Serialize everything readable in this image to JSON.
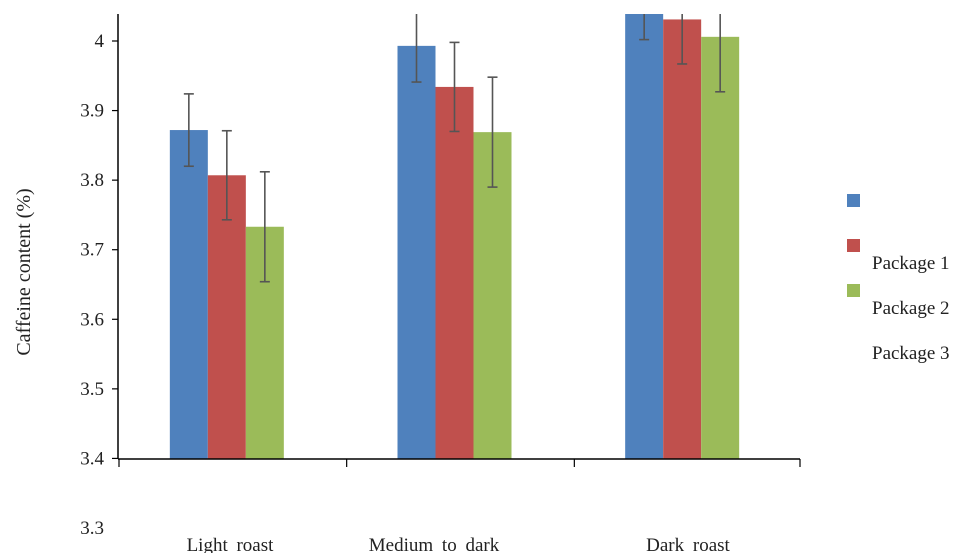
{
  "chart_data": {
    "type": "bar",
    "ylabel": "Caffeine content (%)",
    "xlabel": "",
    "ylim": [
      3.3,
      4.05
    ],
    "y_ticks": [
      "3.3",
      "3.4",
      "3.5",
      "3.6",
      "3.7",
      "3.8",
      "3.9",
      "4"
    ],
    "categories": [
      "Light roast",
      "Medium to dark",
      "Dark roast"
    ],
    "series": [
      {
        "name": "Package 1",
        "color": "#4f81bd",
        "values": [
          3.872,
          3.993,
          4.04
        ],
        "errors": [
          0.052,
          0.052,
          0.038
        ]
      },
      {
        "name": "Package 2",
        "color": "#c0504d",
        "values": [
          3.807,
          3.934,
          4.031
        ],
        "errors": [
          0.064,
          0.064,
          0.064
        ]
      },
      {
        "name": "Package 3",
        "color": "#9bbb59",
        "values": [
          3.733,
          3.869,
          4.006
        ],
        "errors": [
          0.079,
          0.079,
          0.079
        ]
      }
    ],
    "legend": {
      "position": "right"
    },
    "grid": false
  }
}
